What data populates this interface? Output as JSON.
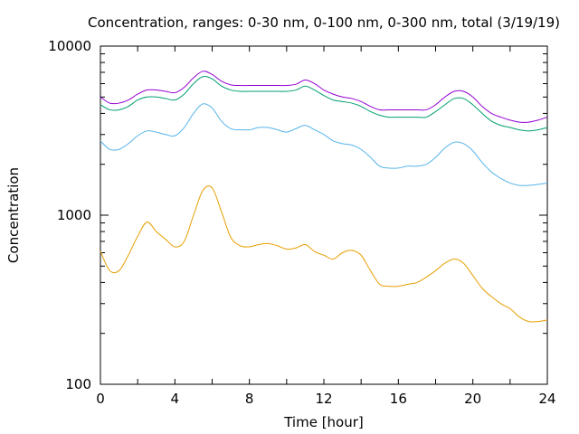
{
  "chart_data": {
    "type": "line",
    "title": "Concentration, ranges: 0-30 nm, 0-100 nm, 0-300 nm, total (3/19/19)",
    "xlabel": "Time [hour]",
    "ylabel": "Concentration",
    "xlim": [
      0,
      24
    ],
    "ylim": [
      100,
      10000
    ],
    "yscale": "log",
    "grid": false,
    "legend": "none",
    "x_ticks": [
      "0",
      "4",
      "8",
      "12",
      "16",
      "20",
      "24"
    ],
    "y_ticks": [
      "100",
      "1000",
      "10000"
    ],
    "series": [
      {
        "color": "#e69f00",
        "x": [
          0,
          0.5,
          1,
          1.5,
          2,
          2.5,
          3,
          3.5,
          4,
          4.5,
          5,
          5.5,
          6,
          6.5,
          7,
          7.5,
          8,
          8.5,
          9,
          9.5,
          10,
          10.5,
          11,
          11.5,
          12,
          12.5,
          13,
          13.5,
          14,
          14.5,
          15,
          15.5,
          16,
          16.5,
          17,
          17.5,
          18,
          18.5,
          19,
          19.5,
          20,
          20.5,
          21,
          21.5,
          22,
          22.5,
          23,
          23.5,
          24
        ],
        "y": [
          610,
          470,
          470,
          580,
          750,
          910,
          800,
          720,
          650,
          700,
          1000,
          1400,
          1450,
          1050,
          740,
          660,
          650,
          670,
          680,
          660,
          630,
          640,
          670,
          610,
          580,
          550,
          600,
          620,
          580,
          470,
          390,
          380,
          380,
          390,
          400,
          430,
          470,
          520,
          550,
          520,
          440,
          370,
          330,
          300,
          280,
          250,
          235,
          235,
          240
        ]
      },
      {
        "color": "#56b4e9",
        "x": [
          0,
          0.5,
          1,
          1.5,
          2,
          2.5,
          3,
          3.5,
          4,
          4.5,
          5,
          5.5,
          6,
          6.5,
          7,
          7.5,
          8,
          8.5,
          9,
          9.5,
          10,
          10.5,
          11,
          11.5,
          12,
          12.5,
          13,
          13.5,
          14,
          14.5,
          15,
          15.5,
          16,
          16.5,
          17,
          17.5,
          18,
          18.5,
          19,
          19.5,
          20,
          20.5,
          21,
          21.5,
          22,
          22.5,
          23,
          23.5,
          24
        ],
        "y": [
          2750,
          2450,
          2450,
          2650,
          2950,
          3150,
          3100,
          3000,
          2950,
          3300,
          4000,
          4550,
          4300,
          3600,
          3250,
          3200,
          3200,
          3300,
          3300,
          3200,
          3100,
          3250,
          3400,
          3200,
          3000,
          2750,
          2650,
          2600,
          2450,
          2200,
          1950,
          1900,
          1900,
          1950,
          1950,
          2000,
          2200,
          2500,
          2700,
          2650,
          2400,
          2050,
          1800,
          1650,
          1550,
          1500,
          1500,
          1520,
          1550
        ]
      },
      {
        "color": "#009e73",
        "x": [
          0,
          0.5,
          1,
          1.5,
          2,
          2.5,
          3,
          3.5,
          4,
          4.5,
          5,
          5.5,
          6,
          6.5,
          7,
          7.5,
          8,
          8.5,
          9,
          9.5,
          10,
          10.5,
          11,
          11.5,
          12,
          12.5,
          13,
          13.5,
          14,
          14.5,
          15,
          15.5,
          16,
          16.5,
          17,
          17.5,
          18,
          18.5,
          19,
          19.5,
          20,
          20.5,
          21,
          21.5,
          22,
          22.5,
          23,
          23.5,
          24
        ],
        "y": [
          4500,
          4200,
          4200,
          4400,
          4800,
          5000,
          5000,
          4900,
          4800,
          5200,
          6000,
          6600,
          6400,
          5800,
          5500,
          5400,
          5400,
          5400,
          5400,
          5400,
          5400,
          5500,
          5800,
          5500,
          5100,
          4800,
          4700,
          4600,
          4400,
          4100,
          3900,
          3800,
          3800,
          3800,
          3800,
          3800,
          4100,
          4500,
          4900,
          4900,
          4500,
          4000,
          3600,
          3400,
          3300,
          3200,
          3150,
          3200,
          3300
        ]
      },
      {
        "color": "#9400d3",
        "x": [
          0,
          0.5,
          1,
          1.5,
          2,
          2.5,
          3,
          3.5,
          4,
          4.5,
          5,
          5.5,
          6,
          6.5,
          7,
          7.5,
          8,
          8.5,
          9,
          9.5,
          10,
          10.5,
          11,
          11.5,
          12,
          12.5,
          13,
          13.5,
          14,
          14.5,
          15,
          15.5,
          16,
          16.5,
          17,
          17.5,
          18,
          18.5,
          19,
          19.5,
          20,
          20.5,
          21,
          21.5,
          22,
          22.5,
          23,
          23.5,
          24
        ],
        "y": [
          5000,
          4600,
          4600,
          4800,
          5200,
          5500,
          5500,
          5400,
          5300,
          5700,
          6500,
          7100,
          6800,
          6200,
          5900,
          5850,
          5850,
          5850,
          5850,
          5850,
          5850,
          5950,
          6300,
          6000,
          5500,
          5200,
          5000,
          4900,
          4700,
          4400,
          4200,
          4200,
          4200,
          4200,
          4200,
          4200,
          4500,
          5000,
          5400,
          5400,
          5000,
          4400,
          4000,
          3800,
          3650,
          3550,
          3550,
          3650,
          3800
        ]
      }
    ]
  }
}
